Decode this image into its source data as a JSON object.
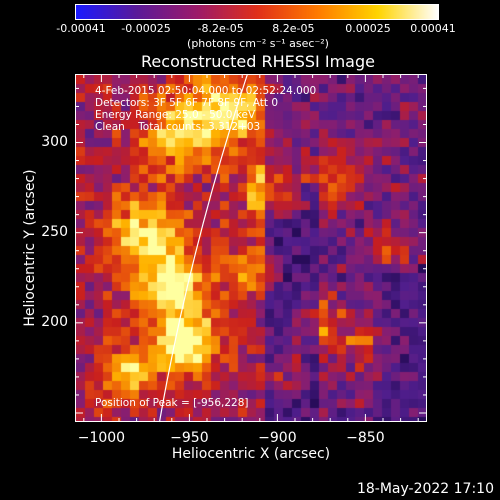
{
  "colorbar": {
    "gradient": [
      "#1a1aff",
      "#5a1a9a",
      "#9c1a6a",
      "#e0301a",
      "#ff7a00",
      "#ffd400",
      "#ffffff"
    ],
    "ticks": [
      {
        "label": "-0.00041",
        "value": -0.00041
      },
      {
        "label": "-0.00025",
        "value": -0.00025
      },
      {
        "label": "-8.2e-05",
        "value": -8.2e-05
      },
      {
        "label": "8.2e-05",
        "value": 8.2e-05
      },
      {
        "label": "0.00025",
        "value": 0.00025
      },
      {
        "label": "0.00041",
        "value": 0.00041
      }
    ],
    "units_text": "(photons cm⁻² s⁻¹ asec⁻²)"
  },
  "plot": {
    "title": "Reconstructed RHESSI Image",
    "info": [
      "4-Feb-2015 02:50:04.000 to 02:52:24.000",
      "Detectors: 3F 5F 6F 7F 8F 9F, Att 0",
      "Energy Range: 25.0 - 50.0 keV",
      "Clean    Total counts: 3.312+03"
    ],
    "peak_text": "Position of Peak = [-956,228]",
    "xlabel": "Heliocentric X (arcsec)",
    "ylabel": "Heliocentric Y (arcsec)",
    "xrange": [
      -1015,
      -815
    ],
    "yrange": [
      145,
      338
    ],
    "xticks": [
      {
        "label": "−1000",
        "value": -1000
      },
      {
        "label": "−950",
        "value": -950
      },
      {
        "label": "−900",
        "value": -900
      },
      {
        "label": "−850",
        "value": -850
      }
    ],
    "yticks": [
      {
        "label": "300",
        "value": 300
      },
      {
        "label": "250",
        "value": 250
      },
      {
        "label": "200",
        "value": 200
      }
    ]
  },
  "timestamp": "18-May-2022 17:10"
}
